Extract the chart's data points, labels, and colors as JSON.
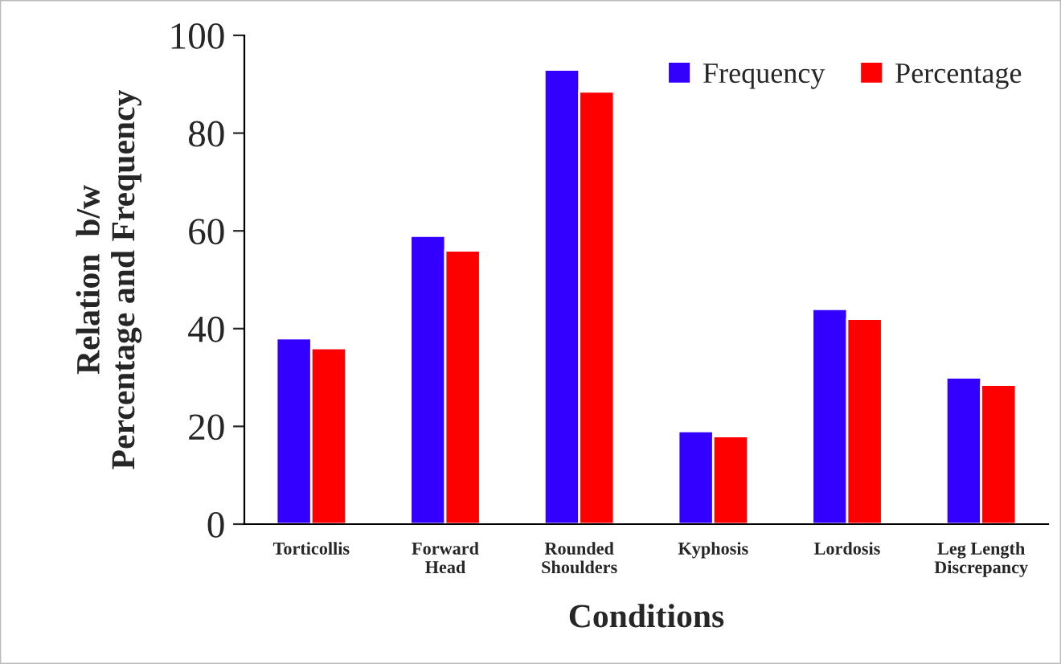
{
  "chart_data": {
    "type": "bar",
    "xlabel": "Conditions",
    "ylabel": "Relation  b/w\nPercentage and Frequency",
    "categories": [
      "Torticollis",
      "Forward\nHead",
      "Rounded\nShoulders",
      "Kyphosis",
      "Lordosis",
      "Leg Length\nDiscrepancy"
    ],
    "series": [
      {
        "name": "Frequency",
        "color": "#3300ff",
        "values": [
          38,
          59,
          93,
          19,
          44,
          30
        ]
      },
      {
        "name": "Percentage",
        "color": "#ff0000",
        "values": [
          36,
          56,
          88.5,
          18,
          42,
          28.5
        ]
      }
    ],
    "ylim": [
      0,
      100
    ],
    "yticks": [
      0,
      20,
      40,
      60,
      80,
      100
    ],
    "grid": false,
    "legend": "top right"
  }
}
